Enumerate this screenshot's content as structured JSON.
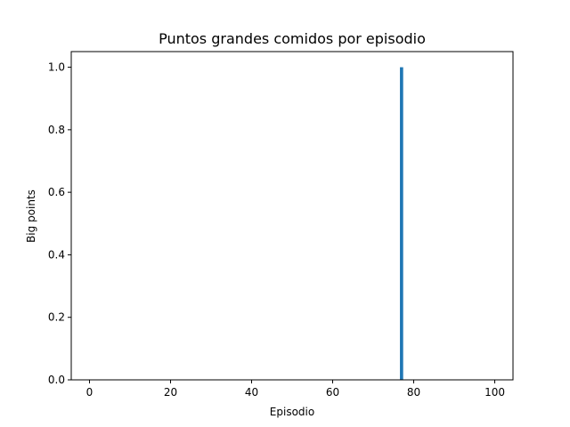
{
  "chart_data": {
    "type": "bar",
    "title": "Puntos grandes comidos por episodio",
    "xlabel": "Episodio",
    "ylabel": "Big points",
    "xlim": [
      -4.5,
      104.5
    ],
    "ylim": [
      0,
      1.05
    ],
    "xticks": [
      0,
      20,
      40,
      60,
      80,
      100
    ],
    "yticks": [
      0.0,
      0.2,
      0.4,
      0.6,
      0.8,
      1.0
    ],
    "xtick_labels": [
      "0",
      "20",
      "40",
      "60",
      "80",
      "100"
    ],
    "ytick_labels": [
      "0.0",
      "0.2",
      "0.4",
      "0.6",
      "0.8",
      "1.0"
    ],
    "bar_color": "#1f77b4",
    "grid": false,
    "x": [
      77
    ],
    "values": [
      1
    ],
    "note_zero_bars": "All other episodes 0–100 have value 0"
  }
}
